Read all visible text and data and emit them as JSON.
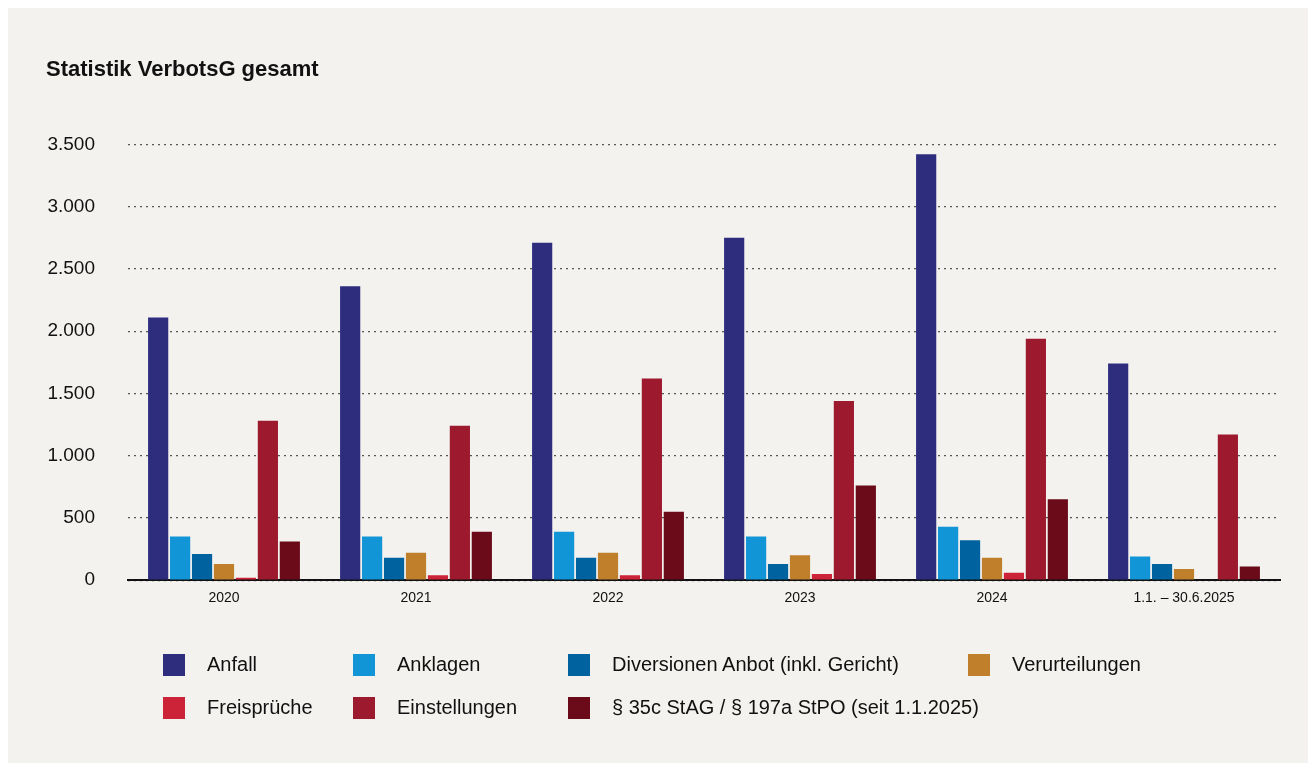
{
  "chart_data": {
    "type": "bar",
    "title": "Statistik VerbotsG gesamt",
    "categories": [
      "2020",
      "2021",
      "2022",
      "2023",
      "2024",
      "1.1. – 30.6.2025"
    ],
    "series": [
      {
        "name": "Anfall",
        "color": "#2e2d7d",
        "values": [
          2110,
          2360,
          2710,
          2750,
          3420,
          1740
        ]
      },
      {
        "name": "Anklagen",
        "color": "#1195d6",
        "values": [
          350,
          350,
          390,
          350,
          430,
          190
        ]
      },
      {
        "name": "Diversionen Anbot (inkl. Gericht)",
        "color": "#0063a0",
        "values": [
          210,
          180,
          180,
          130,
          320,
          130
        ]
      },
      {
        "name": "Verurteilungen",
        "color": "#c07f2a",
        "values": [
          130,
          220,
          220,
          200,
          180,
          90
        ]
      },
      {
        "name": "Freisprüche",
        "color": "#cc2339",
        "values": [
          20,
          40,
          40,
          50,
          60,
          null
        ]
      },
      {
        "name": "Einstellungen",
        "color": "#9d1a2e",
        "values": [
          1280,
          1240,
          1620,
          1440,
          1940,
          1170
        ]
      },
      {
        "name": "§ 35c StAG / § 197a StPO (seit 1.1.2025)",
        "color": "#6b0a18",
        "values": [
          310,
          390,
          550,
          760,
          650,
          110
        ]
      }
    ],
    "ylim": [
      0,
      3500
    ],
    "yticks": [
      {
        "value": 0,
        "label": "0"
      },
      {
        "value": 500,
        "label": "500"
      },
      {
        "value": 1000,
        "label": "1.000"
      },
      {
        "value": 1500,
        "label": "1.500"
      },
      {
        "value": 2000,
        "label": "2.000"
      },
      {
        "value": 2500,
        "label": "2.500"
      },
      {
        "value": 3000,
        "label": "3.000"
      },
      {
        "value": 3500,
        "label": "3.500"
      }
    ],
    "grid": "y",
    "legend": "bottom"
  }
}
